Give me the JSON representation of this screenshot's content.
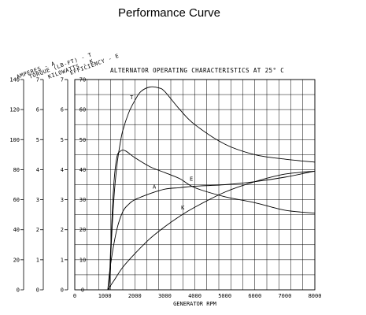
{
  "page": {
    "title": "Performance Curve"
  },
  "chart_data": {
    "type": "line",
    "title": "ALTERNATOR OPERATING CHARACTERISTICS AT 25° C",
    "xlabel": "GENERATOR RPM",
    "xlim": [
      0,
      8000
    ],
    "x_ticks": [
      0,
      1000,
      2000,
      3000,
      4000,
      5000,
      6000,
      7000,
      8000
    ],
    "grid": true,
    "y_axes": [
      {
        "label": "AMPERES - A",
        "ticks": [
          0,
          20,
          40,
          60,
          80,
          100,
          120,
          140
        ],
        "ylim": [
          0,
          140
        ]
      },
      {
        "label": "TORQUE (LB-FT) - T",
        "ticks": [
          0,
          1,
          2,
          3,
          4,
          5,
          6,
          7
        ],
        "ylim": [
          0,
          7
        ]
      },
      {
        "label": "KILOWATTS - K",
        "ticks": [
          0,
          1,
          2,
          3,
          4,
          5,
          6,
          7
        ],
        "ylim": [
          0,
          7
        ]
      },
      {
        "label": "EFFICIENCY - E",
        "ticks": [
          0,
          10,
          20,
          30,
          40,
          50,
          60,
          70
        ],
        "ylim": [
          0,
          70
        ]
      }
    ],
    "series": [
      {
        "name": "T",
        "axis": 1,
        "x": [
          1150,
          1200,
          1300,
          1400,
          1500,
          1600,
          1800,
          2000,
          2200,
          2500,
          2800,
          3000,
          3500,
          4000,
          5000,
          6000,
          7000,
          8000
        ],
        "values": [
          0,
          1.2,
          3.0,
          4.1,
          4.8,
          5.3,
          5.9,
          6.3,
          6.6,
          6.75,
          6.72,
          6.6,
          6.0,
          5.5,
          4.85,
          4.5,
          4.35,
          4.25
        ]
      },
      {
        "name": "E",
        "axis": 3,
        "x": [
          1150,
          1200,
          1300,
          1400,
          1500,
          1600,
          1700,
          1800,
          2000,
          2500,
          3000,
          3500,
          4000,
          5000,
          6000,
          7000,
          8000
        ],
        "values": [
          0,
          15,
          35,
          44,
          46,
          46.5,
          46.2,
          45.5,
          44,
          41,
          39,
          37,
          34,
          31,
          29,
          26.5,
          25.5
        ]
      },
      {
        "name": "A",
        "axis": 0,
        "x": [
          1100,
          1200,
          1400,
          1600,
          1800,
          2000,
          2500,
          3000,
          3500,
          4000,
          5000,
          6000,
          7000,
          8000
        ],
        "values": [
          0,
          18,
          40,
          52,
          57,
          60,
          64,
          67,
          68,
          69,
          70,
          72,
          75,
          79
        ]
      },
      {
        "name": "K",
        "axis": 2,
        "x": [
          1100,
          1300,
          1600,
          2000,
          2500,
          3000,
          3500,
          4000,
          5000,
          6000,
          7000,
          8000
        ],
        "values": [
          0,
          0.3,
          0.75,
          1.2,
          1.7,
          2.1,
          2.45,
          2.75,
          3.25,
          3.6,
          3.85,
          3.95
        ]
      }
    ]
  },
  "colors": {
    "ink": "#000000",
    "background": "#ffffff"
  }
}
